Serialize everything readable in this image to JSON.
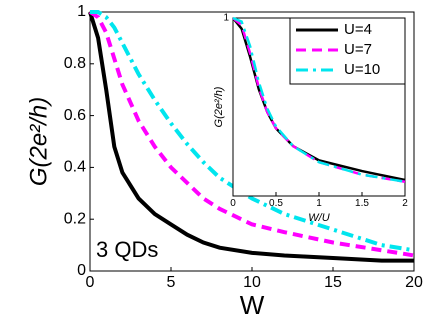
{
  "chart_data": [
    {
      "type": "line",
      "xlabel": "W",
      "ylabel": "G(2e²/h)",
      "annotation": "3 QDs",
      "x": [
        0,
        0.5,
        1,
        1.5,
        2,
        3,
        4,
        5,
        6,
        7,
        8,
        10,
        12,
        15,
        18,
        20
      ],
      "series": [
        {
          "color": "#000000",
          "dash": "solid",
          "values": [
            1,
            0.9,
            0.7,
            0.48,
            0.38,
            0.28,
            0.22,
            0.18,
            0.14,
            0.11,
            0.09,
            0.07,
            0.06,
            0.05,
            0.04,
            0.04
          ]
        },
        {
          "color": "#ff00ff",
          "dash": "dashed",
          "values": [
            1,
            0.98,
            0.92,
            0.82,
            0.72,
            0.58,
            0.48,
            0.4,
            0.34,
            0.28,
            0.24,
            0.18,
            0.15,
            0.11,
            0.08,
            0.06
          ]
        },
        {
          "color": "#00e5ee",
          "dash": "dashdot",
          "values": [
            1,
            1,
            0.98,
            0.94,
            0.88,
            0.76,
            0.66,
            0.57,
            0.49,
            0.42,
            0.36,
            0.28,
            0.22,
            0.16,
            0.1,
            0.08
          ]
        }
      ],
      "xlim": [
        0,
        20
      ],
      "ylim": [
        0,
        1
      ],
      "xticks": [
        0,
        5,
        10,
        15,
        20
      ],
      "yticks": [
        0,
        0.2,
        0.4,
        0.6,
        0.8,
        1
      ]
    },
    {
      "type": "line",
      "xlabel": "W/U",
      "ylabel": "G(2e²/h)",
      "x": [
        0,
        0.1,
        0.2,
        0.3,
        0.4,
        0.5,
        0.7,
        1,
        1.5,
        2
      ],
      "series": [
        {
          "name": "U=4",
          "color": "#000000",
          "dash": "solid",
          "values": [
            1,
            0.94,
            0.78,
            0.6,
            0.47,
            0.38,
            0.28,
            0.2,
            0.14,
            0.09
          ]
        },
        {
          "name": "U=7",
          "color": "#ff00ff",
          "dash": "dashed",
          "values": [
            1,
            0.96,
            0.8,
            0.61,
            0.47,
            0.38,
            0.28,
            0.19,
            0.12,
            0.08
          ]
        },
        {
          "name": "U=10",
          "color": "#00e5ee",
          "dash": "dashdot",
          "values": [
            1,
            0.98,
            0.84,
            0.64,
            0.49,
            0.39,
            0.28,
            0.19,
            0.12,
            0.08
          ]
        }
      ],
      "xlim": [
        0,
        2
      ],
      "ylim": [
        0,
        1
      ],
      "xticks": [
        0,
        0.5,
        1,
        1.5,
        2
      ],
      "yticks": [
        1
      ],
      "legend": "upper right"
    }
  ]
}
